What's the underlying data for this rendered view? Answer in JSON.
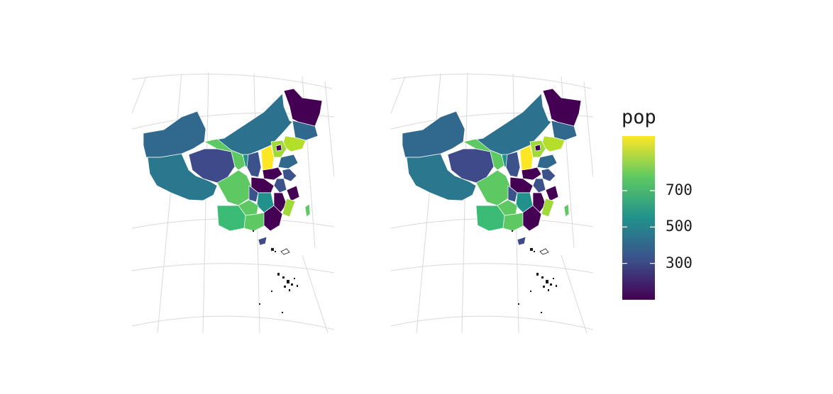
{
  "legend": {
    "title": "pop",
    "ticks": [
      {
        "label": "700",
        "value": 700
      },
      {
        "label": "500",
        "value": 500
      },
      {
        "label": "300",
        "value": 300
      }
    ],
    "range": [
      100,
      1000
    ],
    "colors": [
      "#440154",
      "#3b528b",
      "#21918c",
      "#5ec962",
      "#fde725"
    ]
  },
  "map": {
    "panels": [
      "left",
      "right"
    ],
    "projection": "conic",
    "graticule": true
  }
}
